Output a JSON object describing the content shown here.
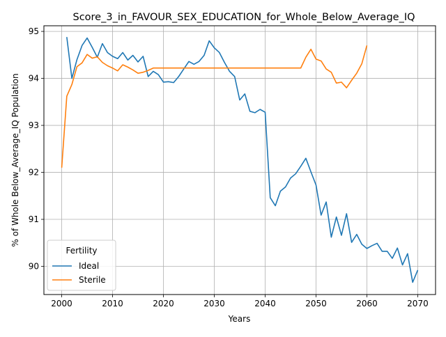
{
  "chart_data": {
    "type": "line",
    "title": "Score_3_in_FAVOUR_SEX_EDUCATION_for_Whole_Below_Average_IQ",
    "xlabel": "Years",
    "ylabel": "% of Whole Below_Average_IQ Population",
    "xlim": [
      1996.5,
      2073.5
    ],
    "ylim": [
      89.4,
      95.12
    ],
    "xticks": [
      2000,
      2010,
      2020,
      2030,
      2040,
      2050,
      2060,
      2070
    ],
    "yticks": [
      90,
      91,
      92,
      93,
      94,
      95
    ],
    "grid": true,
    "legend": {
      "title": "Fertility",
      "placement": "lower-left"
    },
    "series": [
      {
        "name": "Ideal",
        "color": "#1f77b4",
        "x": [
          2001,
          2002,
          2003,
          2004,
          2005,
          2006,
          2007,
          2008,
          2009,
          2010,
          2011,
          2012,
          2013,
          2014,
          2015,
          2016,
          2017,
          2018,
          2019,
          2020,
          2021,
          2022,
          2023,
          2024,
          2025,
          2026,
          2027,
          2028,
          2029,
          2030,
          2031,
          2032,
          2033,
          2034,
          2035,
          2036,
          2037,
          2038,
          2039,
          2040,
          2041,
          2042,
          2043,
          2044,
          2045,
          2046,
          2047,
          2048,
          2049,
          2050,
          2051,
          2052,
          2053,
          2054,
          2055,
          2056,
          2057,
          2058,
          2059,
          2060,
          2061,
          2062,
          2063,
          2064,
          2065,
          2066,
          2067,
          2068,
          2069,
          2070
        ],
        "y": [
          94.88,
          94.0,
          94.4,
          94.7,
          94.86,
          94.66,
          94.45,
          94.74,
          94.55,
          94.47,
          94.42,
          94.55,
          94.39,
          94.49,
          94.35,
          94.47,
          94.04,
          94.15,
          94.08,
          93.92,
          93.93,
          93.91,
          94.04,
          94.2,
          94.36,
          94.3,
          94.36,
          94.49,
          94.8,
          94.65,
          94.55,
          94.34,
          94.15,
          94.04,
          93.54,
          93.67,
          93.3,
          93.27,
          93.34,
          93.28,
          91.46,
          91.29,
          91.6,
          91.69,
          91.88,
          91.97,
          92.13,
          92.3,
          92.01,
          91.73,
          91.09,
          91.37,
          90.62,
          91.05,
          90.66,
          91.12,
          90.51,
          90.68,
          90.47,
          90.38,
          90.44,
          90.49,
          90.32,
          90.32,
          90.17,
          90.39,
          90.03,
          90.27,
          89.66,
          89.92
        ]
      },
      {
        "name": "Sterile",
        "color": "#ff7f0e",
        "x": [
          2000,
          2001,
          2002,
          2003,
          2004,
          2005,
          2006,
          2007,
          2008,
          2009,
          2010,
          2011,
          2012,
          2013,
          2014,
          2015,
          2016,
          2017,
          2018,
          2019,
          2020,
          2021,
          2022,
          2023,
          2024,
          2025,
          2026,
          2027,
          2028,
          2029,
          2030,
          2031,
          2032,
          2033,
          2034,
          2035,
          2036,
          2037,
          2038,
          2039,
          2040,
          2041,
          2042,
          2043,
          2044,
          2045,
          2046,
          2047,
          2048,
          2049,
          2050,
          2051,
          2052,
          2053,
          2054,
          2055,
          2056,
          2057,
          2058,
          2059,
          2060
        ],
        "y": [
          92.1,
          93.62,
          93.87,
          94.25,
          94.33,
          94.51,
          94.43,
          94.46,
          94.34,
          94.27,
          94.22,
          94.16,
          94.29,
          94.24,
          94.18,
          94.11,
          94.13,
          94.17,
          94.22,
          94.22,
          94.22,
          94.22,
          94.22,
          94.22,
          94.22,
          94.22,
          94.22,
          94.22,
          94.22,
          94.22,
          94.22,
          94.22,
          94.22,
          94.22,
          94.22,
          94.22,
          94.22,
          94.22,
          94.22,
          94.22,
          94.22,
          94.22,
          94.22,
          94.22,
          94.22,
          94.22,
          94.22,
          94.22,
          94.45,
          94.62,
          94.41,
          94.37,
          94.2,
          94.13,
          93.9,
          93.92,
          93.8,
          93.96,
          94.11,
          94.31,
          94.7
        ]
      }
    ]
  }
}
